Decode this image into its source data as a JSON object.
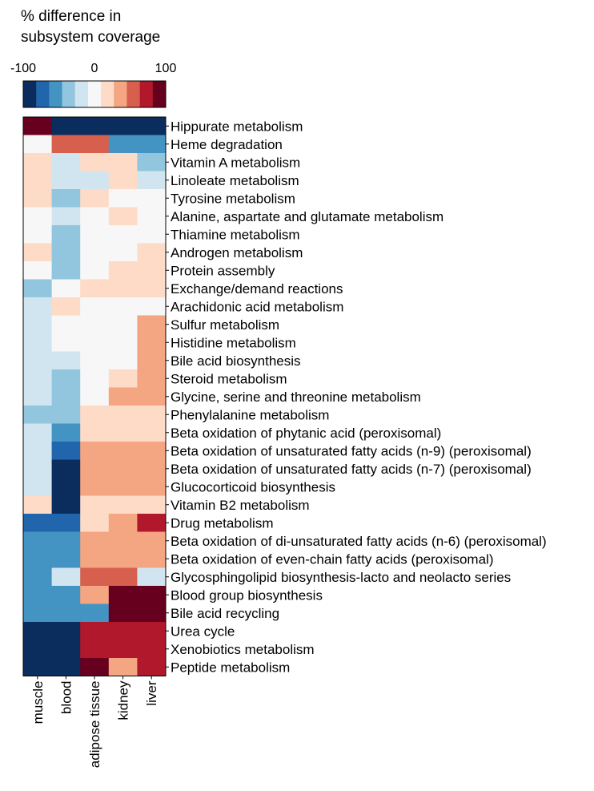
{
  "colorbar": {
    "title_line1": "% difference in",
    "title_line2": "subsystem coverage",
    "tick_labels": [
      "-100",
      "0",
      "100"
    ],
    "tick_values": [
      -100,
      0,
      100
    ],
    "range": [
      -100,
      100
    ],
    "colors": [
      "#0b2d5e",
      "#2166ac",
      "#4393c3",
      "#92c5de",
      "#d1e5f0",
      "#f7f7f7",
      "#fddbc7",
      "#f4a582",
      "#d6604d",
      "#b2182b",
      "#67001f"
    ]
  },
  "chart_data": {
    "type": "heatmap",
    "x_categories": [
      "muscle",
      "blood",
      "adipose tissue",
      "kidney",
      "liver"
    ],
    "y_categories": [
      "Hippurate metabolism",
      "Heme degradation",
      "Vitamin A metabolism",
      "Linoleate metabolism",
      "Tyrosine metabolism",
      "Alanine, aspartate and glutamate metabolism",
      "Thiamine metabolism",
      "Androgen metabolism",
      "Protein assembly",
      "Exchange/demand reactions",
      "Arachidonic acid metabolism",
      "Sulfur metabolism",
      "Histidine metabolism",
      "Bile acid biosynthesis",
      "Steroid metabolism",
      "Glycine, serine and threonine metabolism",
      "Phenylalanine metabolism",
      "Beta oxidation of phytanic acid (peroxisomal)",
      "Beta oxidation of unsaturated fatty acids (n-9) (peroxisomal)",
      "Beta oxidation of unsaturated fatty acids (n-7) (peroxisomal)",
      "Glucocorticoid biosynthesis",
      "Vitamin B2 metabolism",
      "Drug metabolism",
      "Beta oxidation of di-unsaturated fatty acids (n-6) (peroxisomal)",
      "Beta oxidation of even-chain fatty acids (peroxisomal)",
      "Glycosphingolipid biosynthesis-lacto and neolacto series",
      "Blood group biosynthesis",
      "Bile acid recycling",
      "Urea cycle",
      "Xenobiotics metabolism",
      "Peptide metabolism"
    ],
    "values": [
      [
        100,
        -100,
        -100,
        -100,
        -100
      ],
      [
        0,
        60,
        60,
        -60,
        -60
      ],
      [
        20,
        -20,
        20,
        20,
        -40
      ],
      [
        20,
        -20,
        -20,
        20,
        -20
      ],
      [
        20,
        -40,
        20,
        0,
        0
      ],
      [
        0,
        -20,
        0,
        20,
        0
      ],
      [
        0,
        -40,
        0,
        0,
        0
      ],
      [
        20,
        -40,
        0,
        0,
        20
      ],
      [
        0,
        -40,
        0,
        20,
        20
      ],
      [
        -40,
        0,
        20,
        20,
        20
      ],
      [
        -20,
        20,
        0,
        0,
        0
      ],
      [
        -20,
        0,
        0,
        0,
        40
      ],
      [
        -20,
        0,
        0,
        0,
        40
      ],
      [
        -20,
        -20,
        0,
        0,
        40
      ],
      [
        -20,
        -40,
        0,
        20,
        40
      ],
      [
        -20,
        -40,
        0,
        40,
        40
      ],
      [
        -40,
        -40,
        20,
        20,
        20
      ],
      [
        -20,
        -60,
        20,
        20,
        20
      ],
      [
        -20,
        -80,
        40,
        40,
        40
      ],
      [
        -20,
        -100,
        40,
        40,
        40
      ],
      [
        -20,
        -100,
        40,
        40,
        40
      ],
      [
        20,
        -100,
        20,
        20,
        20
      ],
      [
        -80,
        -80,
        20,
        40,
        80
      ],
      [
        -60,
        -60,
        40,
        40,
        40
      ],
      [
        -60,
        -60,
        40,
        40,
        40
      ],
      [
        -60,
        -20,
        60,
        60,
        -20
      ],
      [
        -60,
        -60,
        40,
        100,
        100
      ],
      [
        -60,
        -60,
        -60,
        100,
        100
      ],
      [
        -100,
        -100,
        80,
        80,
        80
      ],
      [
        -100,
        -100,
        80,
        80,
        80
      ],
      [
        -100,
        -100,
        100,
        40,
        80
      ]
    ],
    "value_range": [
      -100,
      100
    ]
  }
}
